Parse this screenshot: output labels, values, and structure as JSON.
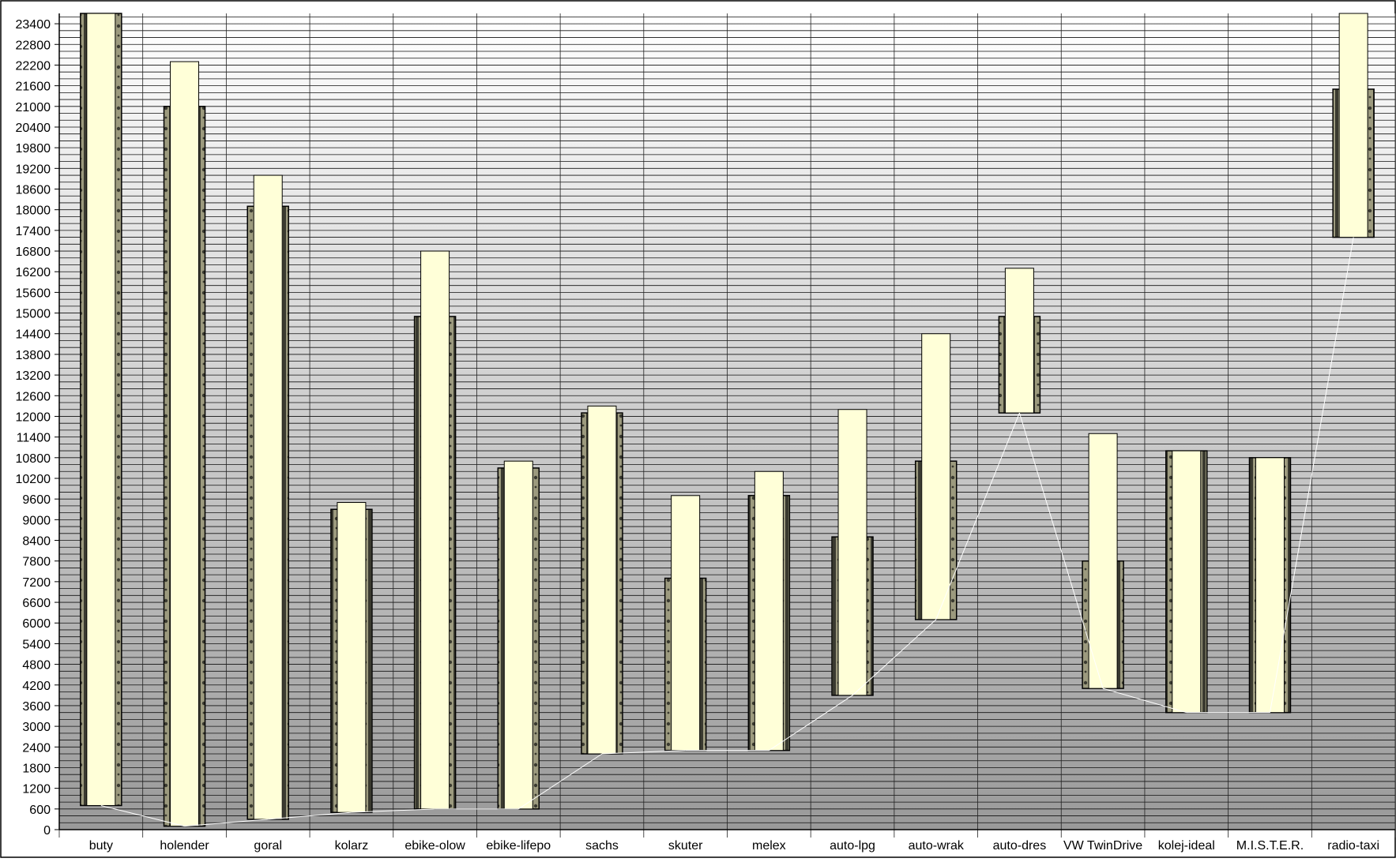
{
  "chart_data": {
    "type": "bar",
    "title": "",
    "xlabel": "",
    "ylabel": "",
    "ylim": [
      0,
      23700
    ],
    "ytick_step": 600,
    "gridline_step": 200,
    "grid": true,
    "legend": "none",
    "colors": {
      "outer_bar_fill": "#9c9a7e",
      "outer_bar_stripe": "#3a3a30",
      "inner_bar_fill": "#ffffd8",
      "connector_line": "#ffffff",
      "gridline": "#111111",
      "background_top": "#ffffff",
      "background_bottom": "#9a9a9a"
    },
    "categories": [
      "buty",
      "holender",
      "goral",
      "kolarz",
      "ebike-olow",
      "ebike-lifepo",
      "sachs",
      "skuter",
      "melex",
      "auto-lpg",
      "auto-wrak",
      "auto-dres",
      "VW TwinDrive",
      "kolej-ideal",
      "M.I.S.T.E.R.",
      "radio-taxi"
    ],
    "series": [
      {
        "low": [
          700,
          100,
          300,
          500,
          600,
          600,
          2200,
          2300,
          2300,
          3900,
          6100,
          12100,
          4100,
          3400,
          3400,
          17200
        ],
        "high": [
          23700,
          21000,
          18100,
          9300,
          14900,
          10500,
          12100,
          7300,
          9700,
          8500,
          10700,
          14900,
          7800,
          11000,
          10800,
          21500
        ]
      },
      {
        "low": [
          700,
          100,
          300,
          500,
          600,
          600,
          2200,
          2300,
          2300,
          3900,
          6100,
          12100,
          4100,
          3400,
          3400,
          17200
        ],
        "high": [
          23700,
          22300,
          19000,
          9500,
          16800,
          10700,
          12300,
          9700,
          10400,
          12200,
          14400,
          16300,
          11500,
          11000,
          10800,
          23700
        ]
      }
    ],
    "ytick_labels": [
      "0",
      "600",
      "1200",
      "1800",
      "2400",
      "3000",
      "3600",
      "4200",
      "4800",
      "5400",
      "6000",
      "6600",
      "7200",
      "7800",
      "8400",
      "9000",
      "9600",
      "10200",
      "10800",
      "11400",
      "12000",
      "12600",
      "13200",
      "13800",
      "14400",
      "15000",
      "15600",
      "16200",
      "16800",
      "17400",
      "18000",
      "18600",
      "19200",
      "19800",
      "20400",
      "21000",
      "21600",
      "22200",
      "22800",
      "23400"
    ]
  }
}
